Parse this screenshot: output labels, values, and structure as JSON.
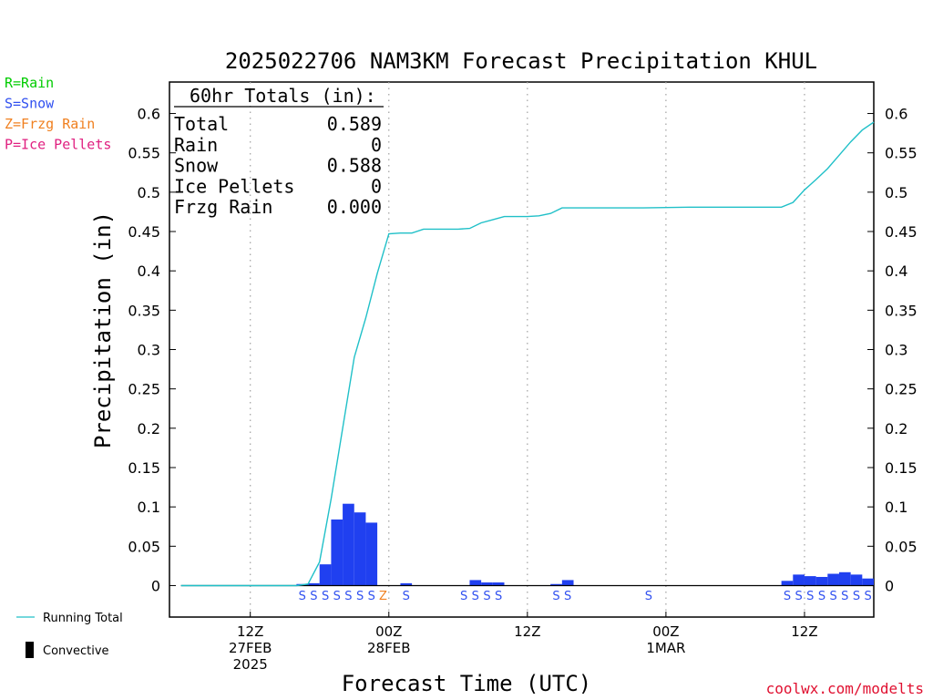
{
  "legend_keys": [
    {
      "text": "R=Rain",
      "color": "#00cc00"
    },
    {
      "text": "S=Snow",
      "color": "#3050f0"
    },
    {
      "text": "Z=Frzg Rain",
      "color": "#f08020"
    },
    {
      "text": "P=Ice Pellets",
      "color": "#e02080"
    }
  ],
  "totals": {
    "header": "60hr Totals (in):",
    "rows": [
      {
        "label": "Total",
        "value": "0.589"
      },
      {
        "label": "Rain",
        "value": "0"
      },
      {
        "label": "Snow",
        "value": "0.588"
      },
      {
        "label": "Ice Pellets",
        "value": "0"
      },
      {
        "label": "Frzg Rain",
        "value": "0.000"
      }
    ]
  },
  "bottom_legend": {
    "running_total": "Running Total",
    "convective": "Convective"
  },
  "credit": "coolwx.com/modelts",
  "chart_data": {
    "type": "bar",
    "title": "2025022706 NAM3KM Forecast Precipitation KHUL",
    "xlabel": "Forecast Time (UTC)",
    "ylabel": "Precipitation (in)",
    "ylim": [
      -0.04,
      0.64
    ],
    "yticks": [
      0,
      0.05,
      0.1,
      0.15,
      0.2,
      0.25,
      0.3,
      0.35,
      0.4,
      0.45,
      0.5,
      0.55,
      0.6
    ],
    "ytick_labels": [
      "0",
      "0.05",
      "0.1",
      "0.15",
      "0.2",
      "0.25",
      "0.3",
      "0.35",
      "0.4",
      "0.45",
      "0.5",
      "0.55",
      "0.6"
    ],
    "x_unit": "forecast hour",
    "xlim": [
      -1,
      60
    ],
    "xticks": [
      {
        "x": 6,
        "lines": [
          "12Z",
          "27FEB",
          "2025"
        ]
      },
      {
        "x": 18,
        "lines": [
          "00Z",
          "28FEB"
        ]
      },
      {
        "x": 30,
        "lines": [
          "12Z"
        ]
      },
      {
        "x": 42,
        "lines": [
          "00Z",
          "1MAR"
        ]
      },
      {
        "x": 54,
        "lines": [
          "12Z"
        ]
      }
    ],
    "colors": {
      "bars": "#2040f0",
      "running_total": "#20c0c8",
      "snow": "#3050f0",
      "frzg": "#f08020",
      "grid": "#a0a0a0"
    },
    "series": [
      {
        "name": "Hourly precipitation",
        "x": [
          11,
          12,
          13,
          14,
          15,
          16,
          17,
          20,
          26,
          27,
          28,
          33,
          34,
          53,
          54,
          55,
          56,
          57,
          58,
          59,
          60
        ],
        "values": [
          0.002,
          0.003,
          0.027,
          0.084,
          0.104,
          0.093,
          0.08,
          0.003,
          0.007,
          0.004,
          0.004,
          0.002,
          0.007,
          0.006,
          0.014,
          0.012,
          0.011,
          0.015,
          0.017,
          0.014,
          0.009
        ]
      },
      {
        "name": "Running Total",
        "x": [
          0,
          10,
          11,
          12,
          13,
          14,
          15,
          16,
          17,
          18,
          19,
          20,
          21,
          22,
          23,
          24,
          25,
          26,
          27,
          28,
          29,
          30,
          31,
          32,
          33,
          34,
          35,
          36,
          40,
          44,
          48,
          52,
          53,
          54,
          55,
          56,
          57,
          58,
          59,
          60
        ],
        "values": [
          0,
          0,
          0.002,
          0.03,
          0.11,
          0.2,
          0.29,
          0.34,
          0.397,
          0.447,
          0.448,
          0.448,
          0.453,
          0.453,
          0.453,
          0.453,
          0.454,
          0.461,
          0.465,
          0.469,
          0.469,
          0.469,
          0.47,
          0.473,
          0.48,
          0.48,
          0.48,
          0.48,
          0.48,
          0.481,
          0.481,
          0.481,
          0.487,
          0.503,
          0.516,
          0.53,
          0.547,
          0.564,
          0.579,
          0.589
        ]
      }
    ],
    "precip_types": [
      {
        "x": 11,
        "type": "S"
      },
      {
        "x": 12,
        "type": "S"
      },
      {
        "x": 13,
        "type": "S"
      },
      {
        "x": 14,
        "type": "S"
      },
      {
        "x": 15,
        "type": "S"
      },
      {
        "x": 16,
        "type": "S"
      },
      {
        "x": 17,
        "type": "S"
      },
      {
        "x": 18,
        "type": "Z"
      },
      {
        "x": 20,
        "type": "S"
      },
      {
        "x": 25,
        "type": "S"
      },
      {
        "x": 26,
        "type": "S"
      },
      {
        "x": 27,
        "type": "S"
      },
      {
        "x": 28,
        "type": "S"
      },
      {
        "x": 33,
        "type": "S"
      },
      {
        "x": 34,
        "type": "S"
      },
      {
        "x": 41,
        "type": "S"
      },
      {
        "x": 53,
        "type": "S"
      },
      {
        "x": 54,
        "type": "S"
      },
      {
        "x": 55,
        "type": "S"
      },
      {
        "x": 56,
        "type": "S"
      },
      {
        "x": 57,
        "type": "S"
      },
      {
        "x": 58,
        "type": "S"
      },
      {
        "x": 59,
        "type": "S"
      },
      {
        "x": 60,
        "type": "S"
      }
    ]
  }
}
